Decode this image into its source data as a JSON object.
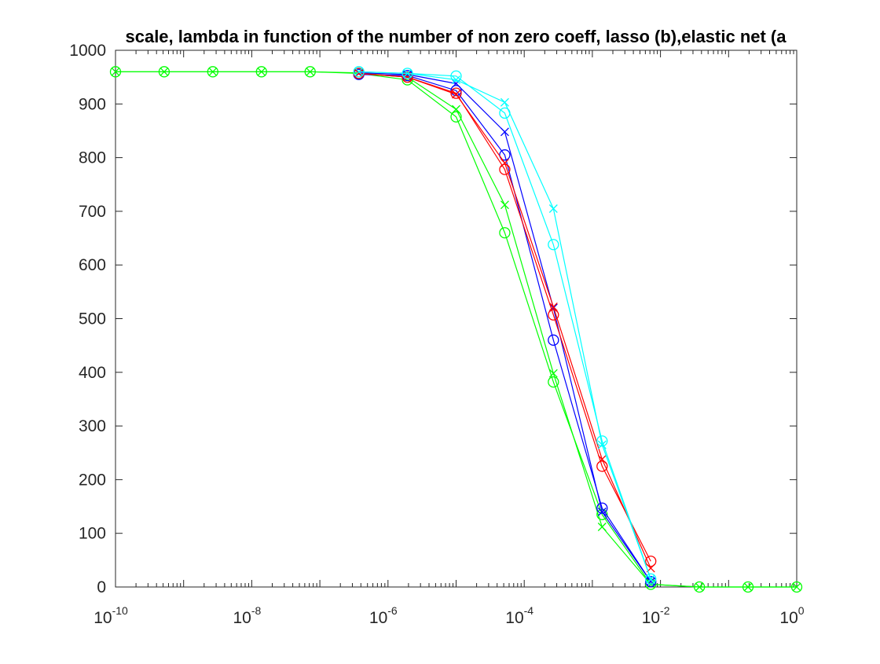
{
  "chart_data": {
    "type": "line",
    "title": "scale, lambda in function of the number of non zero coeff, lasso (b),elastic net (a",
    "xlabel": "",
    "ylabel": "",
    "xscale": "log",
    "xlim": [
      1e-10,
      1
    ],
    "ylim": [
      0,
      1000
    ],
    "grid": false,
    "legend": "none",
    "xticks": [
      {
        "value": 1e-10,
        "base": "10",
        "exp": "-10"
      },
      {
        "value": 1e-08,
        "base": "10",
        "exp": "-8"
      },
      {
        "value": 1e-06,
        "base": "10",
        "exp": "-6"
      },
      {
        "value": 0.0001,
        "base": "10",
        "exp": "-4"
      },
      {
        "value": 0.01,
        "base": "10",
        "exp": "-2"
      },
      {
        "value": 1,
        "base": "10",
        "exp": "0"
      }
    ],
    "yticks": [
      0,
      100,
      200,
      300,
      400,
      500,
      600,
      700,
      800,
      900,
      1000
    ],
    "series": [
      {
        "color": "#00ff00",
        "marker": "x",
        "x": [
          1e-10,
          5.18e-10,
          2.68e-09,
          1.39e-08,
          7.2e-08,
          3.73e-07,
          1.93e-06,
          1e-05,
          5.18e-05,
          0.000268,
          0.00139,
          0.0072,
          0.0373,
          0.193,
          1
        ],
        "y": [
          960,
          960,
          960,
          960,
          960,
          958,
          950,
          890,
          712,
          398,
          112,
          5,
          0,
          0,
          0
        ]
      },
      {
        "color": "#00ff00",
        "marker": "o",
        "x": [
          1e-10,
          5.18e-10,
          2.68e-09,
          1.39e-08,
          7.2e-08,
          3.73e-07,
          1.93e-06,
          1e-05,
          5.18e-05,
          0.000268,
          0.00139,
          0.0072,
          0.0373,
          0.193,
          1
        ],
        "y": [
          960,
          960,
          960,
          960,
          960,
          957,
          945,
          876,
          660,
          382,
          135,
          5,
          0,
          0,
          0
        ]
      },
      {
        "color": "#0000ff",
        "marker": "x",
        "x": [
          3.73e-07,
          1.93e-06,
          1e-05,
          5.18e-05,
          0.000268,
          0.00139,
          0.0072
        ],
        "y": [
          958,
          955,
          938,
          848,
          520,
          140,
          10
        ]
      },
      {
        "color": "#0000ff",
        "marker": "o",
        "x": [
          3.73e-07,
          1.93e-06,
          1e-05,
          5.18e-05,
          0.000268,
          0.00139,
          0.0072
        ],
        "y": [
          955,
          953,
          925,
          805,
          460,
          147,
          10
        ]
      },
      {
        "color": "#ff0000",
        "marker": "x",
        "x": [
          3.73e-07,
          1.93e-06,
          1e-05,
          5.18e-05,
          0.000268,
          0.00139,
          0.0072
        ],
        "y": [
          957,
          950,
          918,
          790,
          522,
          238,
          35
        ]
      },
      {
        "color": "#ff0000",
        "marker": "o",
        "x": [
          3.73e-07,
          1.93e-06,
          1e-05,
          5.18e-05,
          0.000268,
          0.00139,
          0.0072
        ],
        "y": [
          957,
          950,
          920,
          778,
          507,
          225,
          48
        ]
      },
      {
        "color": "#00ffff",
        "marker": "x",
        "x": [
          3.73e-07,
          1.93e-06,
          1e-05,
          5.18e-05,
          0.000268,
          0.00139,
          0.0072
        ],
        "y": [
          960,
          957,
          945,
          903,
          705,
          265,
          15
        ]
      },
      {
        "color": "#00ffff",
        "marker": "o",
        "x": [
          3.73e-07,
          1.93e-06,
          1e-05,
          5.18e-05,
          0.000268,
          0.00139,
          0.0072
        ],
        "y": [
          960,
          957,
          952,
          883,
          638,
          272,
          15
        ]
      }
    ]
  }
}
